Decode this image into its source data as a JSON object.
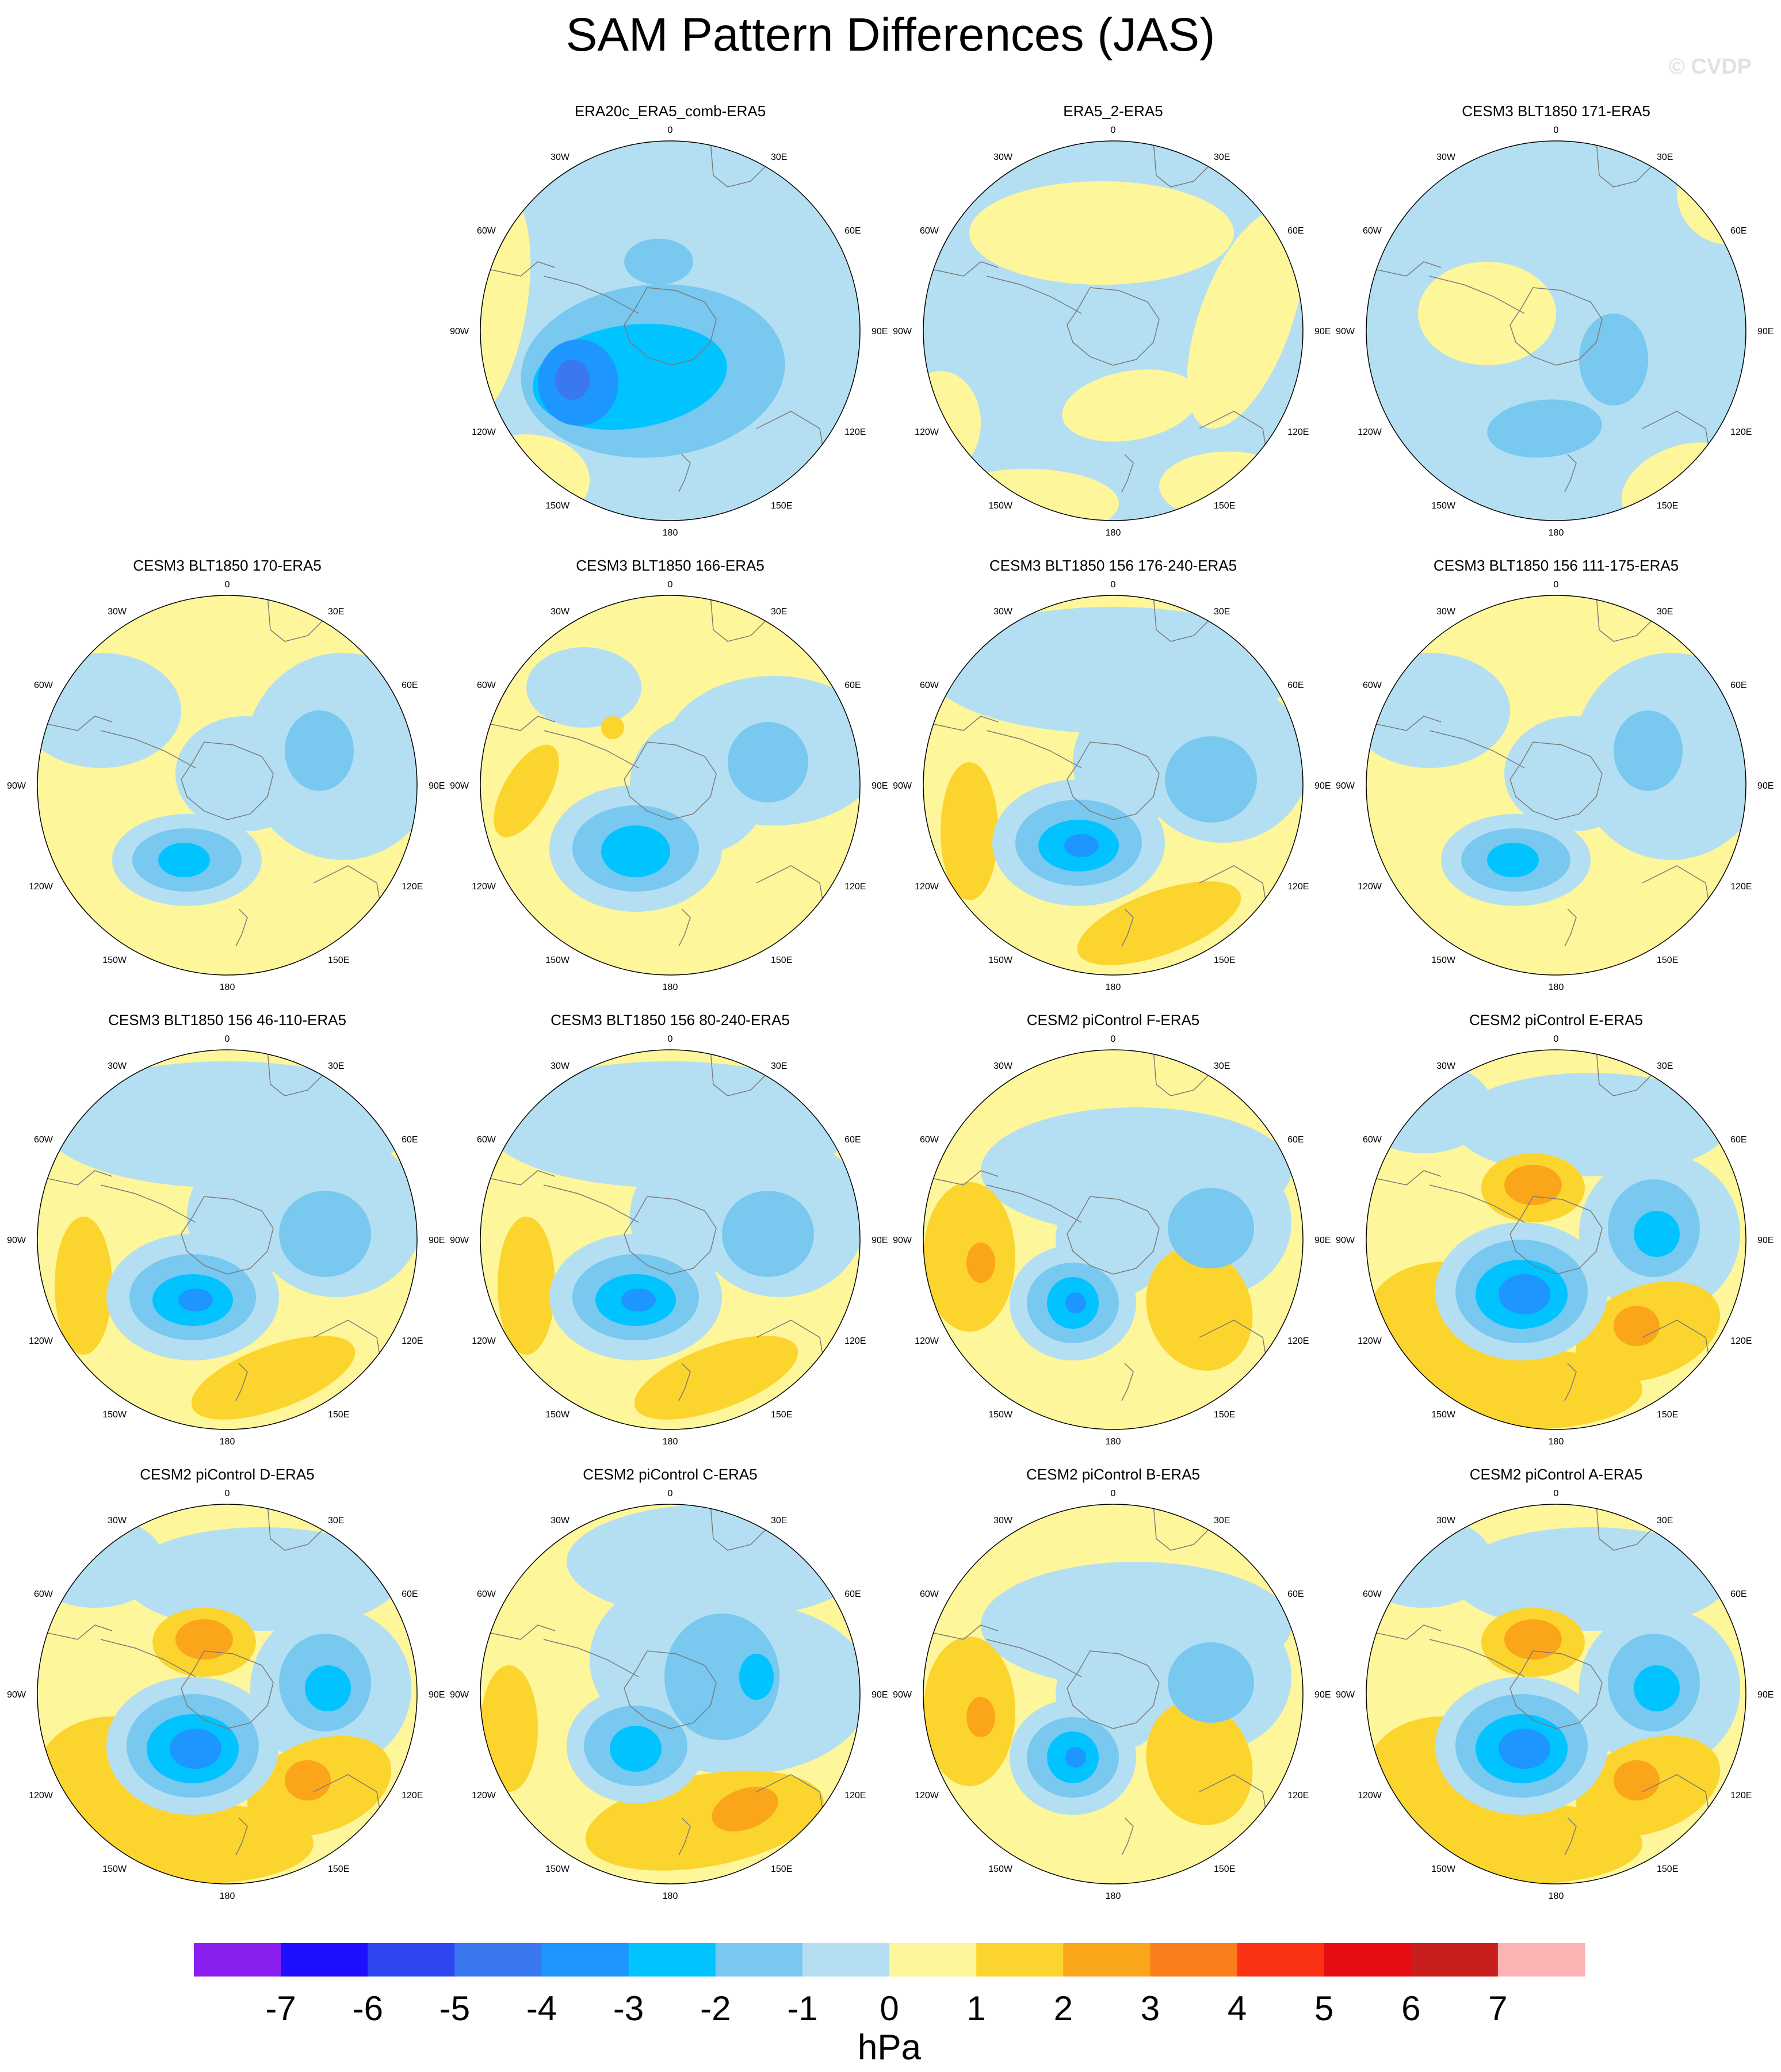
{
  "title": "SAM Pattern Differences (JAS)",
  "watermark": "© CVDP",
  "lon_labels": [
    "0",
    "30E",
    "60E",
    "90E",
    "120E",
    "150E",
    "180",
    "150W",
    "120W",
    "90W",
    "60W",
    "30W"
  ],
  "colorbar": {
    "unit": "hPa",
    "labels": [
      "-7",
      "-6",
      "-5",
      "-4",
      "-3",
      "-2",
      "-1",
      "0",
      "1",
      "2",
      "3",
      "4",
      "5",
      "6",
      "7"
    ],
    "colors": [
      "#8a1ff0",
      "#1e10ff",
      "#2e46ef",
      "#3a78ef",
      "#1e96ff",
      "#00c3ff",
      "#78c8f0",
      "#b4dff2",
      "#fdf69a",
      "#fcd42e",
      "#fba51a",
      "#fb7e1c",
      "#fc3214",
      "#e80c14",
      "#c81e1e",
      "#fdb3b3"
    ]
  },
  "panels": [
    {
      "title": "ERA20c_ERA5_comb-ERA5",
      "style": "era20c"
    },
    {
      "title": "ERA5_2-ERA5",
      "style": "weakband"
    },
    {
      "title": "CESM3 BLT1850 171-ERA5",
      "style": "weakblue"
    },
    {
      "title": "CESM3 BLT1850 170-ERA5",
      "style": "cesm3a"
    },
    {
      "title": "CESM3 BLT1850 166-ERA5",
      "style": "cesm3b"
    },
    {
      "title": "CESM3 BLT1850 156 176-240-ERA5",
      "style": "cesm3c"
    },
    {
      "title": "CESM3 BLT1850 156 111-175-ERA5",
      "style": "cesm3a"
    },
    {
      "title": "CESM3 BLT1850 156 46-110-ERA5",
      "style": "cesm3c"
    },
    {
      "title": "CESM3 BLT1850 156 80-240-ERA5",
      "style": "cesm3c"
    },
    {
      "title": "CESM2 piControl F-ERA5",
      "style": "cesm2f"
    },
    {
      "title": "CESM2 piControl E-ERA5",
      "style": "cesm2strong"
    },
    {
      "title": "CESM2 piControl D-ERA5",
      "style": "cesm2strong"
    },
    {
      "title": "CESM2 piControl C-ERA5",
      "style": "cesm2c"
    },
    {
      "title": "CESM2 piControl B-ERA5",
      "style": "cesm2f"
    },
    {
      "title": "CESM2 piControl A-ERA5",
      "style": "cesm2strong"
    }
  ]
}
